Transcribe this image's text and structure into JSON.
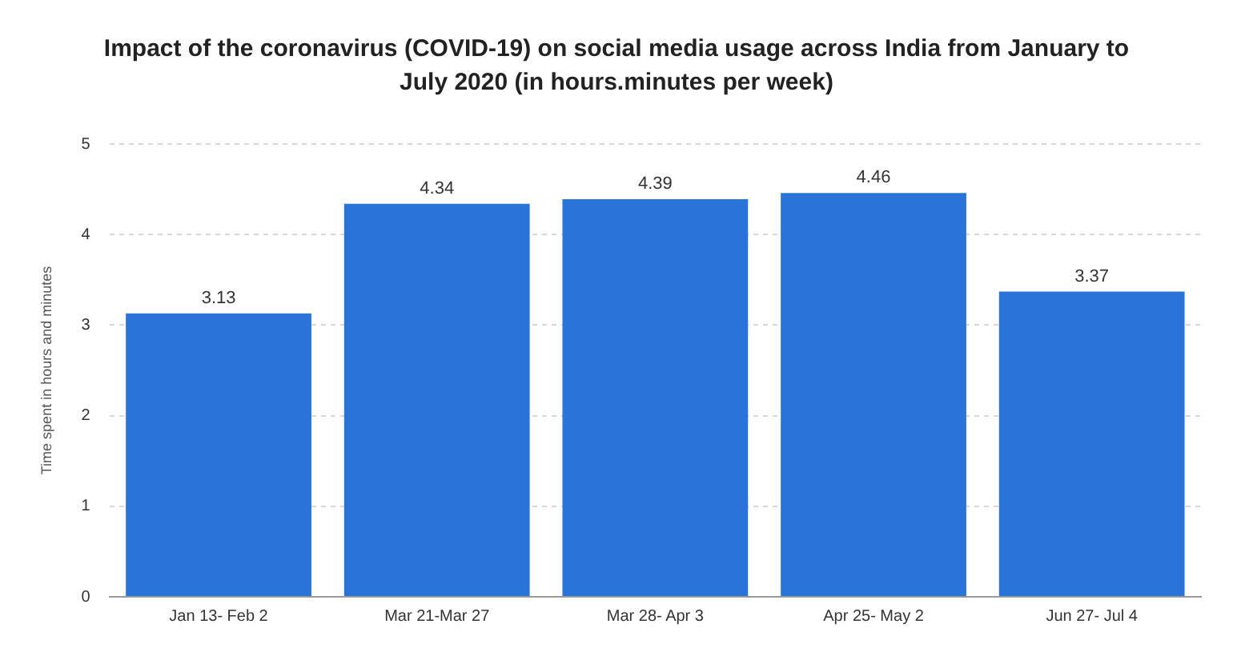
{
  "chart_data": {
    "type": "bar",
    "title": "Impact of the coronavirus (COVID-19) on social media usage across India from January to July 2020 (in hours.minutes per week)",
    "ylabel": "Time spent in hours and minutes",
    "categories": [
      "Jan 13- Feb 2",
      "Mar 21-Mar 27",
      "Mar 28- Apr 3",
      "Apr 25- May 2",
      "Jun 27- Jul 4"
    ],
    "values": [
      3.13,
      4.34,
      4.39,
      4.46,
      3.37
    ],
    "color": "#2a74d9",
    "ylim": [
      0,
      5
    ],
    "yticks": [
      0,
      1,
      2,
      3,
      4,
      5
    ],
    "grid": "y",
    "data_labels": true
  }
}
